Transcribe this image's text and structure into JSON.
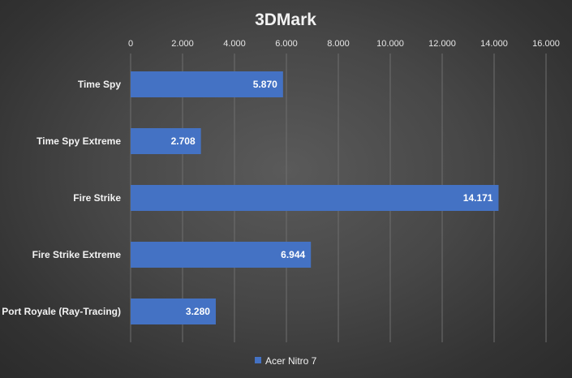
{
  "chart_data": {
    "type": "bar",
    "orientation": "horizontal",
    "title": "3DMark",
    "categories": [
      "Time Spy",
      "Time Spy Extreme",
      "Fire Strike",
      "Fire Strike Extreme",
      "Port Royale (Ray-Tracing)"
    ],
    "series": [
      {
        "name": "Acer Nitro 7",
        "color": "#4472c4",
        "values": [
          5870,
          2708,
          14171,
          6944,
          3280
        ],
        "labels": [
          "5.870",
          "2.708",
          "14.171",
          "6.944",
          "3.280"
        ]
      }
    ],
    "xlim": [
      0,
      16000
    ],
    "xticks": [
      0,
      2000,
      4000,
      6000,
      8000,
      10000,
      12000,
      14000,
      16000
    ],
    "xtick_labels": [
      "0",
      "2.000",
      "4.000",
      "6.000",
      "8.000",
      "10.000",
      "12.000",
      "14.000",
      "16.000"
    ],
    "xaxis_position": "top",
    "grid": true,
    "legend_position": "bottom"
  }
}
